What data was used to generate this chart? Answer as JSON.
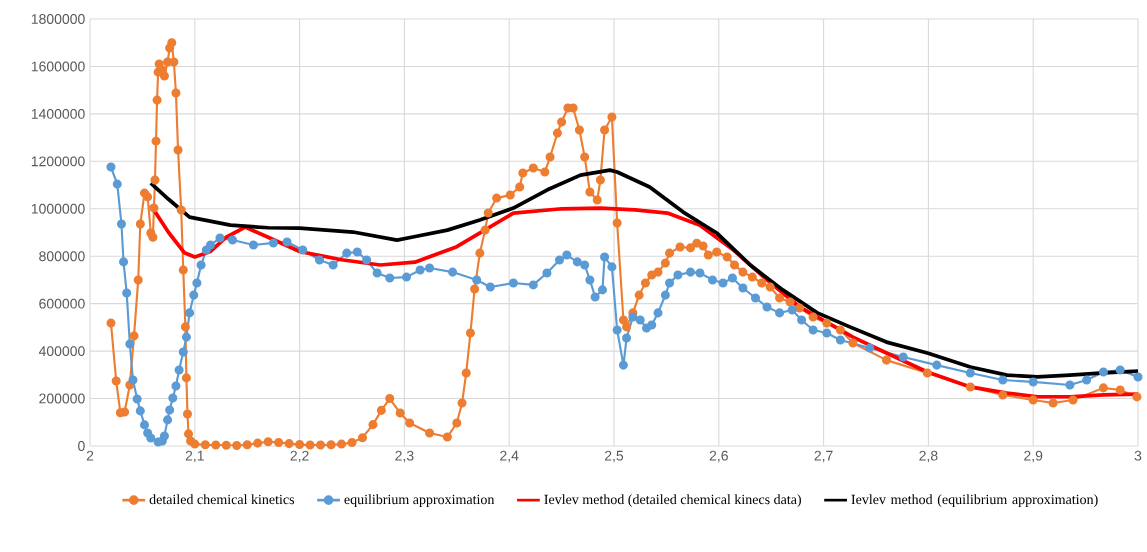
{
  "chart_data": {
    "type": "line",
    "xlim": [
      2,
      3
    ],
    "xticks": [
      2,
      {
        "value": 2.1,
        "label": "2,1"
      },
      {
        "value": 2.2,
        "label": "2,2"
      },
      {
        "value": 2.3,
        "label": "2,3"
      },
      {
        "value": 2.4,
        "label": "2,4"
      },
      {
        "value": 2.5,
        "label": "2,5"
      },
      {
        "value": 2.6,
        "label": "2,6"
      },
      {
        "value": 2.7,
        "label": "2,7"
      },
      {
        "value": 2.8,
        "label": "2,8"
      },
      {
        "value": 2.9,
        "label": "2,9"
      },
      3
    ],
    "ylim": [
      0,
      1800000
    ],
    "yticks": [
      0,
      200000,
      400000,
      600000,
      800000,
      1000000,
      1200000,
      1400000,
      1600000,
      1800000
    ],
    "grid": true,
    "legend": "bottom",
    "series": [
      {
        "name": "detailed chemical kinetics",
        "color": "#ed7d31",
        "marker": "circle",
        "x": [
          2.02,
          2.025,
          2.029,
          2.033,
          2.038,
          2.042,
          2.046,
          2.048,
          2.052,
          2.055,
          2.058,
          2.06,
          2.061,
          2.062,
          2.063,
          2.064,
          2.065,
          2.066,
          2.069,
          2.071,
          2.074,
          2.076,
          2.078,
          2.08,
          2.082,
          2.084,
          2.087,
          2.089,
          2.091,
          2.092,
          2.093,
          2.094,
          2.096,
          2.1,
          2.11,
          2.12,
          2.13,
          2.14,
          2.15,
          2.16,
          2.17,
          2.18,
          2.19,
          2.2,
          2.21,
          2.22,
          2.23,
          2.24,
          2.25,
          2.26,
          2.27,
          2.278,
          2.286,
          2.296,
          2.305,
          2.324,
          2.341,
          2.35,
          2.355,
          2.359,
          2.363,
          2.367,
          2.372,
          2.377,
          2.38,
          2.388,
          2.401,
          2.41,
          2.413,
          2.423,
          2.434,
          2.439,
          2.446,
          2.45,
          2.456,
          2.461,
          2.467,
          2.472,
          2.477,
          2.484,
          2.487,
          2.491,
          2.498,
          2.503,
          2.509,
          2.512,
          2.518,
          2.524,
          2.53,
          2.536,
          2.542,
          2.549,
          2.553,
          2.563,
          2.573,
          2.579,
          2.585,
          2.59,
          2.598,
          2.608,
          2.615,
          2.623,
          2.632,
          2.641,
          2.649,
          2.658,
          2.668,
          2.677,
          2.69,
          2.703,
          2.716,
          2.728,
          2.76,
          2.799,
          2.84,
          2.871,
          2.9,
          2.919,
          2.938,
          2.967,
          2.983,
          2.999
        ],
        "values": [
          518000,
          274000,
          140000,
          143000,
          257000,
          464000,
          700000,
          936000,
          1066000,
          1050000,
          898000,
          880000,
          1003000,
          1121000,
          1285000,
          1458000,
          1576000,
          1610000,
          1585000,
          1560000,
          1619000,
          1678000,
          1700000,
          1619000,
          1488000,
          1248000,
          995000,
          742000,
          502000,
          287000,
          135000,
          51000,
          21000,
          8000,
          5000,
          4000,
          3000,
          2000,
          5000,
          12000,
          18000,
          15000,
          10000,
          6000,
          4000,
          4000,
          5000,
          8000,
          15000,
          35000,
          90000,
          150000,
          200000,
          139000,
          97000,
          55000,
          38000,
          97000,
          181000,
          308000,
          476000,
          662000,
          813000,
          910000,
          982000,
          1045000,
          1058000,
          1092000,
          1151000,
          1172000,
          1155000,
          1218000,
          1319000,
          1366000,
          1425000,
          1425000,
          1332000,
          1218000,
          1071000,
          1037000,
          1121000,
          1332000,
          1387000,
          940000,
          531000,
          502000,
          561000,
          636000,
          687000,
          721000,
          733000,
          771000,
          813000,
          839000,
          835000,
          855000,
          843000,
          805000,
          818000,
          797000,
          763000,
          733000,
          712000,
          687000,
          670000,
          624000,
          607000,
          582000,
          544000,
          518000,
          489000,
          434000,
          362000,
          308000,
          249000,
          215000,
          194000,
          181000,
          194000,
          245000,
          236000,
          207000
        ]
      },
      {
        "name": "equilibrium approximation",
        "color": "#5b9bd5",
        "marker": "circle",
        "x": [
          2.02,
          2.026,
          2.03,
          2.032,
          2.035,
          2.038,
          2.041,
          2.045,
          2.048,
          2.052,
          2.055,
          2.058,
          2.065,
          2.069,
          2.071,
          2.074,
          2.076,
          2.079,
          2.082,
          2.085,
          2.089,
          2.092,
          2.095,
          2.099,
          2.102,
          2.106,
          2.111,
          2.115,
          2.124,
          2.136,
          2.156,
          2.175,
          2.188,
          2.203,
          2.219,
          2.232,
          2.245,
          2.255,
          2.264,
          2.274,
          2.286,
          2.302,
          2.315,
          2.324,
          2.346,
          2.369,
          2.382,
          2.404,
          2.423,
          2.436,
          2.448,
          2.455,
          2.465,
          2.472,
          2.477,
          2.482,
          2.489,
          2.491,
          2.498,
          2.503,
          2.509,
          2.512,
          2.518,
          2.525,
          2.531,
          2.536,
          2.542,
          2.549,
          2.553,
          2.561,
          2.573,
          2.582,
          2.594,
          2.604,
          2.613,
          2.623,
          2.635,
          2.646,
          2.658,
          2.67,
          2.679,
          2.69,
          2.703,
          2.716,
          2.744,
          2.776,
          2.808,
          2.84,
          2.871,
          2.9,
          2.935,
          2.951,
          2.967,
          2.983,
          3.0
        ],
        "values": [
          1176000,
          1104000,
          936000,
          776000,
          645000,
          430000,
          278000,
          198000,
          148000,
          89000,
          55000,
          34000,
          17000,
          21000,
          42000,
          110000,
          152000,
          202000,
          253000,
          320000,
          396000,
          459000,
          561000,
          636000,
          687000,
          763000,
          826000,
          847000,
          877000,
          868000,
          847000,
          856000,
          860000,
          826000,
          784000,
          763000,
          813000,
          818000,
          784000,
          729000,
          708000,
          712000,
          742000,
          750000,
          733000,
          700000,
          670000,
          687000,
          679000,
          729000,
          784000,
          805000,
          776000,
          763000,
          700000,
          628000,
          658000,
          797000,
          755000,
          489000,
          341000,
          455000,
          544000,
          531000,
          497000,
          510000,
          561000,
          636000,
          687000,
          721000,
          733000,
          729000,
          700000,
          687000,
          708000,
          666000,
          624000,
          586000,
          561000,
          573000,
          531000,
          489000,
          476000,
          447000,
          413000,
          375000,
          341000,
          308000,
          278000,
          270000,
          257000,
          278000,
          312000,
          320000,
          291000
        ]
      },
      {
        "name": "Ievlev method (detailed chemical kinecs data)",
        "color": "#ff0000",
        "marker": "none",
        "x": [
          2.058,
          2.075,
          2.09,
          2.1,
          2.115,
          2.13,
          2.148,
          2.17,
          2.2,
          2.24,
          2.277,
          2.31,
          2.35,
          2.404,
          2.45,
          2.487,
          2.52,
          2.551,
          2.582,
          2.614,
          2.646,
          2.677,
          2.716,
          2.728,
          2.76,
          2.799,
          2.84,
          2.875,
          2.904,
          2.935,
          2.967,
          3.0
        ],
        "values": [
          1015000,
          900000,
          815000,
          797000,
          820000,
          880000,
          923000,
          880000,
          820000,
          785000,
          763000,
          775000,
          840000,
          982000,
          1000000,
          1003000,
          995000,
          982000,
          931000,
          826000,
          700000,
          586000,
          489000,
          459000,
          392000,
          312000,
          249000,
          223000,
          207000,
          207000,
          215000,
          219000
        ]
      },
      {
        "name": "Ievlev method (equilibrium approximation)",
        "color": "#000000",
        "marker": "none",
        "x": [
          2.058,
          2.075,
          2.095,
          2.134,
          2.17,
          2.2,
          2.251,
          2.293,
          2.308,
          2.341,
          2.372,
          2.404,
          2.436,
          2.468,
          2.496,
          2.503,
          2.534,
          2.566,
          2.598,
          2.63,
          2.661,
          2.694,
          2.725,
          2.76,
          2.799,
          2.84,
          2.875,
          2.904,
          2.935,
          2.967,
          3.0
        ],
        "values": [
          1108000,
          1040000,
          965000,
          931000,
          920000,
          918000,
          902000,
          868000,
          881000,
          910000,
          953000,
          1003000,
          1079000,
          1142000,
          1163000,
          1155000,
          1092000,
          986000,
          898000,
          763000,
          658000,
          561000,
          502000,
          438000,
          392000,
          333000,
          299000,
          291000,
          299000,
          308000,
          316000
        ]
      }
    ]
  }
}
